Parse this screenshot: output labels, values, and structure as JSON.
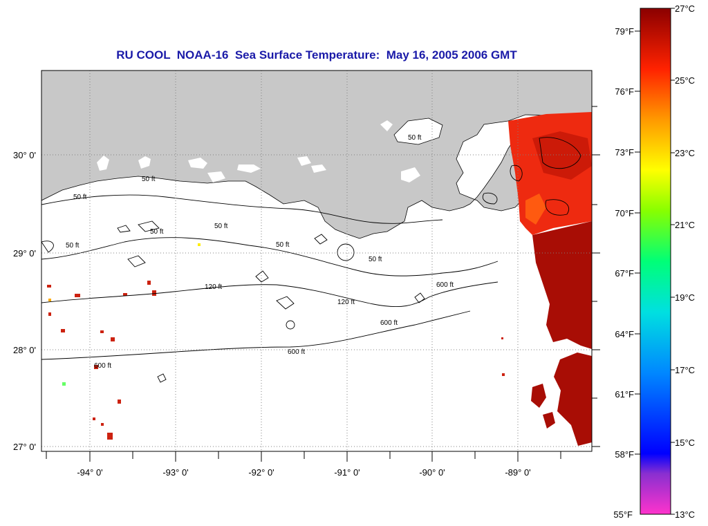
{
  "title": "RU COOL  NOAA-16  Sea Surface Temperature:  May 16, 2005 2006 GMT",
  "map": {
    "lat_labels": [
      "30° 0'",
      "29° 0'",
      "28° 0'",
      "27° 0'"
    ],
    "lon_labels": [
      "-94° 0'",
      "-93° 0'",
      "-92° 0'",
      "-91° 0'",
      "-90° 0'",
      "-89° 0'"
    ],
    "contour_labels": [
      "50 ft",
      "50 ft",
      "50 ft",
      "50 ft",
      "50 ft",
      "50 ft",
      "50 ft",
      "50 ft",
      "120 ft",
      "120 ft",
      "600 ft",
      "600 ft",
      "600 ft",
      "600 ft"
    ],
    "colors": {
      "land": "#c8c8c8",
      "grid": "#808080",
      "title": "#1a1aa8"
    }
  },
  "colorbar": {
    "fahrenheit": [
      "79°F",
      "76°F",
      "73°F",
      "70°F",
      "67°F",
      "64°F",
      "61°F",
      "58°F",
      "55°F"
    ],
    "celsius": [
      "27°C",
      "25°C",
      "23°C",
      "21°C",
      "19°C",
      "17°C",
      "15°C",
      "13°C"
    ]
  }
}
